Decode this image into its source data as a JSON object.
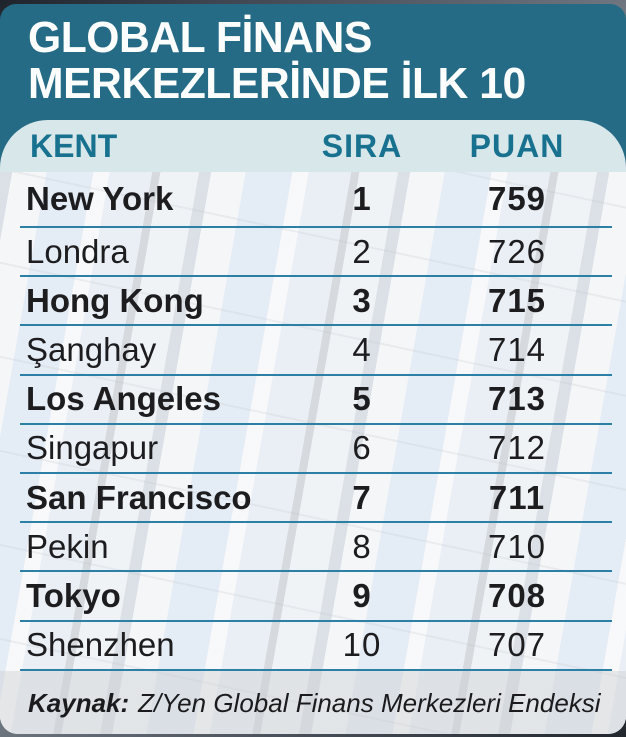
{
  "title": {
    "line1": "GLOBAL FİNANS",
    "line2": "MERKEZLERİNDE İLK 10"
  },
  "table": {
    "columns": [
      "KENT",
      "SIRA",
      "PUAN"
    ],
    "rows": [
      {
        "city": "New York",
        "rank": "1",
        "score": "759",
        "bold": true
      },
      {
        "city": "Londra",
        "rank": "2",
        "score": "726",
        "bold": false
      },
      {
        "city": "Hong Kong",
        "rank": "3",
        "score": "715",
        "bold": true
      },
      {
        "city": "Şanghay",
        "rank": "4",
        "score": "714",
        "bold": false
      },
      {
        "city": "Los Angeles",
        "rank": "5",
        "score": "713",
        "bold": true
      },
      {
        "city": "Singapur",
        "rank": "6",
        "score": "712",
        "bold": false
      },
      {
        "city": "San Francisco",
        "rank": "7",
        "score": "711",
        "bold": true
      },
      {
        "city": "Pekin",
        "rank": "8",
        "score": "710",
        "bold": false
      },
      {
        "city": "Tokyo",
        "rank": "9",
        "score": "708",
        "bold": true
      },
      {
        "city": "Shenzhen",
        "rank": "10",
        "score": "707",
        "bold": false
      }
    ]
  },
  "source": {
    "label": "Kaynak:",
    "text": "Z/Yen Global Finans Merkezleri Endeksi"
  },
  "colors": {
    "header_bg": "#256b86",
    "band_bg": "#d8e7ea",
    "band_text": "#17718f",
    "divider": "#2c7fa5",
    "row_text": "#1d1d1f",
    "title_text": "#fcfdfd"
  },
  "chart_data": {
    "type": "table",
    "title": "GLOBAL FİNANS MERKEZLERİNDE İLK 10",
    "columns": [
      "KENT",
      "SIRA",
      "PUAN"
    ],
    "rows": [
      [
        "New York",
        1,
        759
      ],
      [
        "Londra",
        2,
        726
      ],
      [
        "Hong Kong",
        3,
        715
      ],
      [
        "Şanghay",
        4,
        714
      ],
      [
        "Los Angeles",
        5,
        713
      ],
      [
        "Singapur",
        6,
        712
      ],
      [
        "San Francisco",
        7,
        711
      ],
      [
        "Pekin",
        8,
        710
      ],
      [
        "Tokyo",
        9,
        708
      ],
      [
        "Shenzhen",
        10,
        707
      ]
    ],
    "source": "Z/Yen Global Finans Merkezleri Endeksi"
  }
}
